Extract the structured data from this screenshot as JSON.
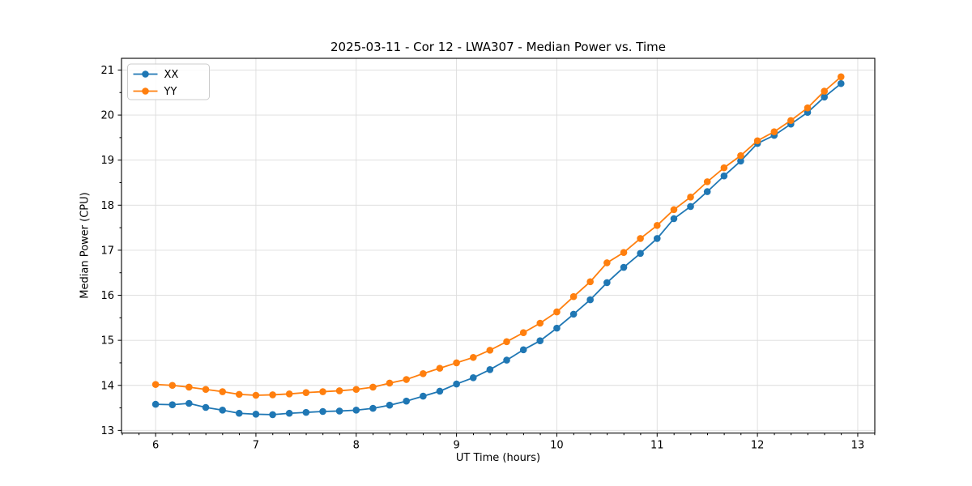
{
  "chart_data": {
    "type": "line",
    "title": "2025-03-11 - Cor 12 - LWA307 - Median Power vs. Time",
    "xlabel": "UT Time (hours)",
    "ylabel": "Median Power (CPU)",
    "xlim": [
      5.66,
      13.17
    ],
    "ylim": [
      12.94,
      21.26
    ],
    "x_ticks": [
      6,
      7,
      8,
      9,
      10,
      11,
      12,
      13
    ],
    "y_ticks": [
      13,
      14,
      15,
      16,
      17,
      18,
      19,
      20,
      21
    ],
    "x_minor_step": 0.1667,
    "y_minor_step": 0.5,
    "grid": true,
    "grid_color": "#dcdcdc",
    "marker": "o",
    "legend": {
      "position": "upper left",
      "entries": [
        "XX",
        "YY"
      ]
    },
    "x": [
      6.0,
      6.167,
      6.333,
      6.5,
      6.667,
      6.833,
      7.0,
      7.167,
      7.333,
      7.5,
      7.667,
      7.833,
      8.0,
      8.167,
      8.333,
      8.5,
      8.667,
      8.833,
      9.0,
      9.167,
      9.333,
      9.5,
      9.667,
      9.833,
      10.0,
      10.167,
      10.333,
      10.5,
      10.667,
      10.833,
      11.0,
      11.167,
      11.333,
      11.5,
      11.667,
      11.833,
      12.0,
      12.167,
      12.333,
      12.5,
      12.667,
      12.833
    ],
    "series": [
      {
        "name": "XX",
        "color": "#1f77b4",
        "values": [
          13.58,
          13.57,
          13.6,
          13.51,
          13.45,
          13.38,
          13.36,
          13.35,
          13.38,
          13.4,
          13.42,
          13.43,
          13.45,
          13.49,
          13.56,
          13.65,
          13.76,
          13.87,
          14.03,
          14.17,
          14.35,
          14.56,
          14.79,
          14.99,
          15.27,
          15.58,
          15.9,
          16.28,
          16.62,
          16.93,
          17.26,
          17.7,
          17.97,
          18.3,
          18.65,
          18.98,
          19.37,
          19.55,
          19.8,
          20.06,
          20.4,
          20.7
        ]
      },
      {
        "name": "YY",
        "color": "#ff7f0e",
        "values": [
          14.02,
          14.0,
          13.96,
          13.91,
          13.86,
          13.8,
          13.78,
          13.79,
          13.81,
          13.84,
          13.86,
          13.88,
          13.91,
          13.96,
          14.05,
          14.13,
          14.26,
          14.38,
          14.5,
          14.62,
          14.78,
          14.97,
          15.17,
          15.38,
          15.63,
          15.97,
          16.3,
          16.72,
          16.95,
          17.26,
          17.55,
          17.9,
          18.18,
          18.52,
          18.83,
          19.1,
          19.43,
          19.63,
          19.88,
          20.16,
          20.53,
          20.85
        ]
      }
    ]
  }
}
